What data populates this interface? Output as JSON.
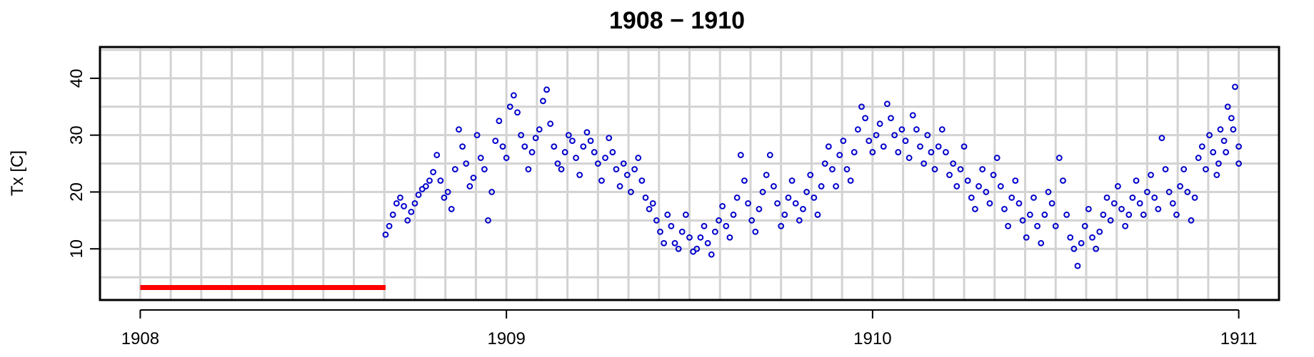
{
  "chart_data": {
    "type": "scatter",
    "title": "1908 − 1910",
    "xlabel": "",
    "ylabel": "Tx [C]",
    "xlim": [
      1907.89,
      1911.11
    ],
    "ylim": [
      1.0,
      45.5
    ],
    "x_ticks": [
      1908,
      1909,
      1910,
      1911
    ],
    "x_tick_labels": [
      "1908",
      "1909",
      "1910",
      "1911"
    ],
    "y_ticks": [
      10,
      20,
      30,
      40
    ],
    "y_tick_labels": [
      "10",
      "20",
      "30",
      "40"
    ],
    "grid": true,
    "missing_data_marker": {
      "x_start": 1908.0,
      "x_end": 1908.67,
      "y": 3.2,
      "color": "#ff0000"
    },
    "point_color": "#0000cc",
    "series": [
      {
        "points": [
          [
            1908.67,
            12.5
          ],
          [
            1908.68,
            14.0
          ],
          [
            1908.69,
            16.0
          ],
          [
            1908.7,
            18.0
          ],
          [
            1908.71,
            19.0
          ],
          [
            1908.72,
            17.5
          ],
          [
            1908.73,
            15.0
          ],
          [
            1908.74,
            16.5
          ],
          [
            1908.75,
            18.0
          ],
          [
            1908.76,
            19.5
          ],
          [
            1908.77,
            20.5
          ],
          [
            1908.78,
            21.0
          ],
          [
            1908.79,
            22.0
          ],
          [
            1908.8,
            23.5
          ],
          [
            1908.81,
            26.5
          ],
          [
            1908.82,
            22.0
          ],
          [
            1908.83,
            19.0
          ],
          [
            1908.84,
            20.0
          ],
          [
            1908.85,
            17.0
          ],
          [
            1908.86,
            24.0
          ],
          [
            1908.87,
            31.0
          ],
          [
            1908.88,
            28.0
          ],
          [
            1908.89,
            25.0
          ],
          [
            1908.9,
            21.0
          ],
          [
            1908.91,
            22.5
          ],
          [
            1908.92,
            30.0
          ],
          [
            1908.93,
            26.0
          ],
          [
            1908.94,
            24.0
          ],
          [
            1908.95,
            15.0
          ],
          [
            1908.96,
            20.0
          ],
          [
            1908.97,
            29.0
          ],
          [
            1908.98,
            32.5
          ],
          [
            1908.99,
            28.0
          ],
          [
            1909.0,
            26.0
          ],
          [
            1909.01,
            35.0
          ],
          [
            1909.02,
            37.0
          ],
          [
            1909.03,
            34.0
          ],
          [
            1909.04,
            30.0
          ],
          [
            1909.05,
            28.0
          ],
          [
            1909.06,
            24.0
          ],
          [
            1909.07,
            27.0
          ],
          [
            1909.08,
            29.5
          ],
          [
            1909.09,
            31.0
          ],
          [
            1909.1,
            36.0
          ],
          [
            1909.11,
            38.0
          ],
          [
            1909.12,
            32.0
          ],
          [
            1909.13,
            28.0
          ],
          [
            1909.14,
            25.0
          ],
          [
            1909.15,
            24.0
          ],
          [
            1909.16,
            27.0
          ],
          [
            1909.17,
            30.0
          ],
          [
            1909.18,
            29.0
          ],
          [
            1909.19,
            26.0
          ],
          [
            1909.2,
            23.0
          ],
          [
            1909.21,
            28.0
          ],
          [
            1909.22,
            30.5
          ],
          [
            1909.23,
            29.0
          ],
          [
            1909.24,
            27.0
          ],
          [
            1909.25,
            25.0
          ],
          [
            1909.26,
            22.0
          ],
          [
            1909.27,
            26.0
          ],
          [
            1909.28,
            29.5
          ],
          [
            1909.29,
            27.0
          ],
          [
            1909.3,
            24.0
          ],
          [
            1909.31,
            21.0
          ],
          [
            1909.32,
            25.0
          ],
          [
            1909.33,
            23.0
          ],
          [
            1909.34,
            20.0
          ],
          [
            1909.35,
            24.0
          ],
          [
            1909.36,
            26.0
          ],
          [
            1909.37,
            22.0
          ],
          [
            1909.38,
            19.0
          ],
          [
            1909.39,
            17.0
          ],
          [
            1909.4,
            18.0
          ],
          [
            1909.41,
            15.0
          ],
          [
            1909.42,
            13.0
          ],
          [
            1909.43,
            11.0
          ],
          [
            1909.44,
            16.0
          ],
          [
            1909.45,
            14.0
          ],
          [
            1909.46,
            11.0
          ],
          [
            1909.47,
            10.0
          ],
          [
            1909.48,
            13.0
          ],
          [
            1909.49,
            16.0
          ],
          [
            1909.5,
            12.0
          ],
          [
            1909.51,
            9.5
          ],
          [
            1909.52,
            10.0
          ],
          [
            1909.53,
            12.0
          ],
          [
            1909.54,
            14.0
          ],
          [
            1909.55,
            11.0
          ],
          [
            1909.56,
            9.0
          ],
          [
            1909.57,
            13.0
          ],
          [
            1909.58,
            15.0
          ],
          [
            1909.59,
            17.5
          ],
          [
            1909.6,
            14.0
          ],
          [
            1909.61,
            12.0
          ],
          [
            1909.62,
            16.0
          ],
          [
            1909.63,
            19.0
          ],
          [
            1909.64,
            26.5
          ],
          [
            1909.65,
            22.0
          ],
          [
            1909.66,
            18.0
          ],
          [
            1909.67,
            15.0
          ],
          [
            1909.68,
            13.0
          ],
          [
            1909.69,
            17.0
          ],
          [
            1909.7,
            20.0
          ],
          [
            1909.71,
            23.0
          ],
          [
            1909.72,
            26.5
          ],
          [
            1909.73,
            21.0
          ],
          [
            1909.74,
            18.0
          ],
          [
            1909.75,
            14.0
          ],
          [
            1909.76,
            16.0
          ],
          [
            1909.77,
            19.0
          ],
          [
            1909.78,
            22.0
          ],
          [
            1909.79,
            18.0
          ],
          [
            1909.8,
            15.0
          ],
          [
            1909.81,
            17.0
          ],
          [
            1909.82,
            20.0
          ],
          [
            1909.83,
            23.0
          ],
          [
            1909.84,
            19.0
          ],
          [
            1909.85,
            16.0
          ],
          [
            1909.86,
            21.0
          ],
          [
            1909.87,
            25.0
          ],
          [
            1909.88,
            28.0
          ],
          [
            1909.89,
            24.0
          ],
          [
            1909.9,
            21.0
          ],
          [
            1909.91,
            26.5
          ],
          [
            1909.92,
            29.0
          ],
          [
            1909.93,
            24.0
          ],
          [
            1909.94,
            22.0
          ],
          [
            1909.95,
            27.0
          ],
          [
            1909.96,
            31.0
          ],
          [
            1909.97,
            35.0
          ],
          [
            1909.98,
            33.0
          ],
          [
            1909.99,
            29.0
          ],
          [
            1910.0,
            27.0
          ],
          [
            1910.01,
            30.0
          ],
          [
            1910.02,
            32.0
          ],
          [
            1910.03,
            28.0
          ],
          [
            1910.04,
            35.5
          ],
          [
            1910.05,
            33.0
          ],
          [
            1910.06,
            30.0
          ],
          [
            1910.07,
            27.0
          ],
          [
            1910.08,
            31.0
          ],
          [
            1910.09,
            29.0
          ],
          [
            1910.1,
            26.0
          ],
          [
            1910.11,
            33.5
          ],
          [
            1910.12,
            31.0
          ],
          [
            1910.13,
            28.0
          ],
          [
            1910.14,
            25.0
          ],
          [
            1910.15,
            30.0
          ],
          [
            1910.16,
            27.0
          ],
          [
            1910.17,
            24.0
          ],
          [
            1910.18,
            28.0
          ],
          [
            1910.19,
            31.0
          ],
          [
            1910.2,
            27.0
          ],
          [
            1910.21,
            23.0
          ],
          [
            1910.22,
            25.0
          ],
          [
            1910.23,
            21.0
          ],
          [
            1910.24,
            24.0
          ],
          [
            1910.25,
            28.0
          ],
          [
            1910.26,
            22.0
          ],
          [
            1910.27,
            19.0
          ],
          [
            1910.28,
            17.0
          ],
          [
            1910.29,
            21.0
          ],
          [
            1910.3,
            24.0
          ],
          [
            1910.31,
            20.0
          ],
          [
            1910.32,
            18.0
          ],
          [
            1910.33,
            23.0
          ],
          [
            1910.34,
            26.0
          ],
          [
            1910.35,
            21.0
          ],
          [
            1910.36,
            17.0
          ],
          [
            1910.37,
            14.0
          ],
          [
            1910.38,
            19.0
          ],
          [
            1910.39,
            22.0
          ],
          [
            1910.4,
            18.0
          ],
          [
            1910.41,
            15.0
          ],
          [
            1910.42,
            12.0
          ],
          [
            1910.43,
            16.0
          ],
          [
            1910.44,
            19.0
          ],
          [
            1910.45,
            14.0
          ],
          [
            1910.46,
            11.0
          ],
          [
            1910.47,
            16.0
          ],
          [
            1910.48,
            20.0
          ],
          [
            1910.49,
            18.0
          ],
          [
            1910.5,
            14.0
          ],
          [
            1910.51,
            26.0
          ],
          [
            1910.52,
            22.0
          ],
          [
            1910.53,
            16.0
          ],
          [
            1910.54,
            12.0
          ],
          [
            1910.55,
            10.0
          ],
          [
            1910.56,
            7.0
          ],
          [
            1910.57,
            11.0
          ],
          [
            1910.58,
            14.0
          ],
          [
            1910.59,
            17.0
          ],
          [
            1910.6,
            12.0
          ],
          [
            1910.61,
            10.0
          ],
          [
            1910.62,
            13.0
          ],
          [
            1910.63,
            16.0
          ],
          [
            1910.64,
            19.0
          ],
          [
            1910.65,
            15.0
          ],
          [
            1910.66,
            18.0
          ],
          [
            1910.67,
            21.0
          ],
          [
            1910.68,
            17.0
          ],
          [
            1910.69,
            14.0
          ],
          [
            1910.7,
            16.0
          ],
          [
            1910.71,
            19.0
          ],
          [
            1910.72,
            22.0
          ],
          [
            1910.73,
            18.0
          ],
          [
            1910.74,
            16.0
          ],
          [
            1910.75,
            20.0
          ],
          [
            1910.76,
            23.0
          ],
          [
            1910.77,
            19.0
          ],
          [
            1910.78,
            17.0
          ],
          [
            1910.79,
            29.5
          ],
          [
            1910.8,
            24.0
          ],
          [
            1910.81,
            20.0
          ],
          [
            1910.82,
            18.0
          ],
          [
            1910.83,
            16.0
          ],
          [
            1910.84,
            21.0
          ],
          [
            1910.85,
            24.0
          ],
          [
            1910.86,
            20.0
          ],
          [
            1910.87,
            15.0
          ],
          [
            1910.88,
            19.0
          ],
          [
            1910.89,
            26.0
          ],
          [
            1910.9,
            28.0
          ],
          [
            1910.91,
            24.0
          ],
          [
            1910.92,
            30.0
          ],
          [
            1910.93,
            27.0
          ],
          [
            1910.94,
            23.0
          ],
          [
            1910.95,
            31.0
          ],
          [
            1910.96,
            29.0
          ],
          [
            1910.97,
            35.0
          ],
          [
            1910.98,
            33.0
          ],
          [
            1910.99,
            38.5
          ],
          [
            1911.0,
            28.0
          ],
          [
            1910.985,
            31.0
          ],
          [
            1910.965,
            27.0
          ],
          [
            1910.945,
            25.0
          ],
          [
            1911.0,
            25.0
          ]
        ]
      }
    ]
  }
}
